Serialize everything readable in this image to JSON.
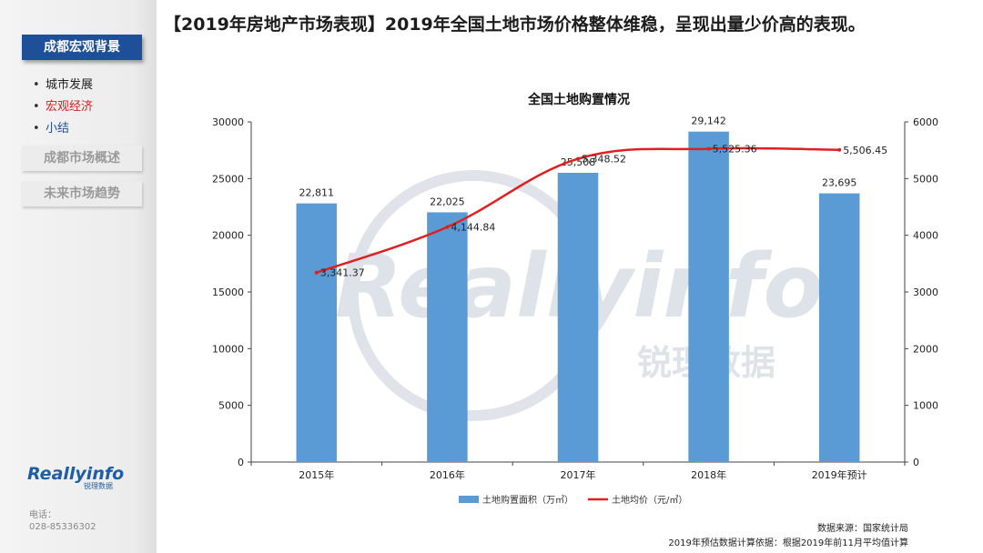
{
  "headline": "【2019年房地产市场表现】2019年全国土地市场价格整体维稳，呈现出量少价高的表现。",
  "sidebar": {
    "active_section": "成都宏观背景",
    "sub_items": [
      {
        "label": "城市发展",
        "color": "#222222"
      },
      {
        "label": "宏观经济",
        "color": "#d42020"
      },
      {
        "label": "小结",
        "color": "#1e4f99"
      }
    ],
    "other_sections": [
      "成都市场概述",
      "未来市场趋势"
    ],
    "logo": "Reallyinfo",
    "logo_sub": "锐理数据",
    "phone_label": "电话：",
    "phone_number": "028-85336302"
  },
  "watermark": {
    "text": "Reallyinfo",
    "sub": "锐理数据"
  },
  "chart_data": {
    "type": "bar",
    "title": "全国土地购置情况",
    "categories": [
      "2015年",
      "2016年",
      "2017年",
      "2018年",
      "2019年预计"
    ],
    "series": [
      {
        "name": "土地购置面积（万㎡）",
        "kind": "bar",
        "axis": "left",
        "color": "#5b9bd5",
        "values": [
          22811,
          22025,
          25508,
          29142,
          23695
        ],
        "labels": [
          "22,811",
          "22,025",
          "25,508",
          "29,142",
          "23,695"
        ]
      },
      {
        "name": "土地均价（元/㎡）",
        "kind": "line",
        "axis": "right",
        "color": "#e02020",
        "values": [
          3341.37,
          4144.84,
          5348.52,
          5525.36,
          5506.45
        ],
        "labels": [
          "3,341.37",
          "4,144.84",
          "5,348.52",
          "5,525.36",
          "5,506.45"
        ]
      }
    ],
    "y_left": {
      "min": 0,
      "max": 30000,
      "ticks": [
        0,
        5000,
        10000,
        15000,
        20000,
        25000,
        30000
      ]
    },
    "y_right": {
      "min": 0,
      "max": 6000,
      "ticks": [
        0,
        1000,
        2000,
        3000,
        4000,
        5000,
        6000
      ]
    },
    "legend_position": "bottom",
    "grid": false
  },
  "footnotes": [
    "数据来源：国家统计局",
    "2019年预估数据计算依据：根据2019年前11月平均值计算"
  ]
}
